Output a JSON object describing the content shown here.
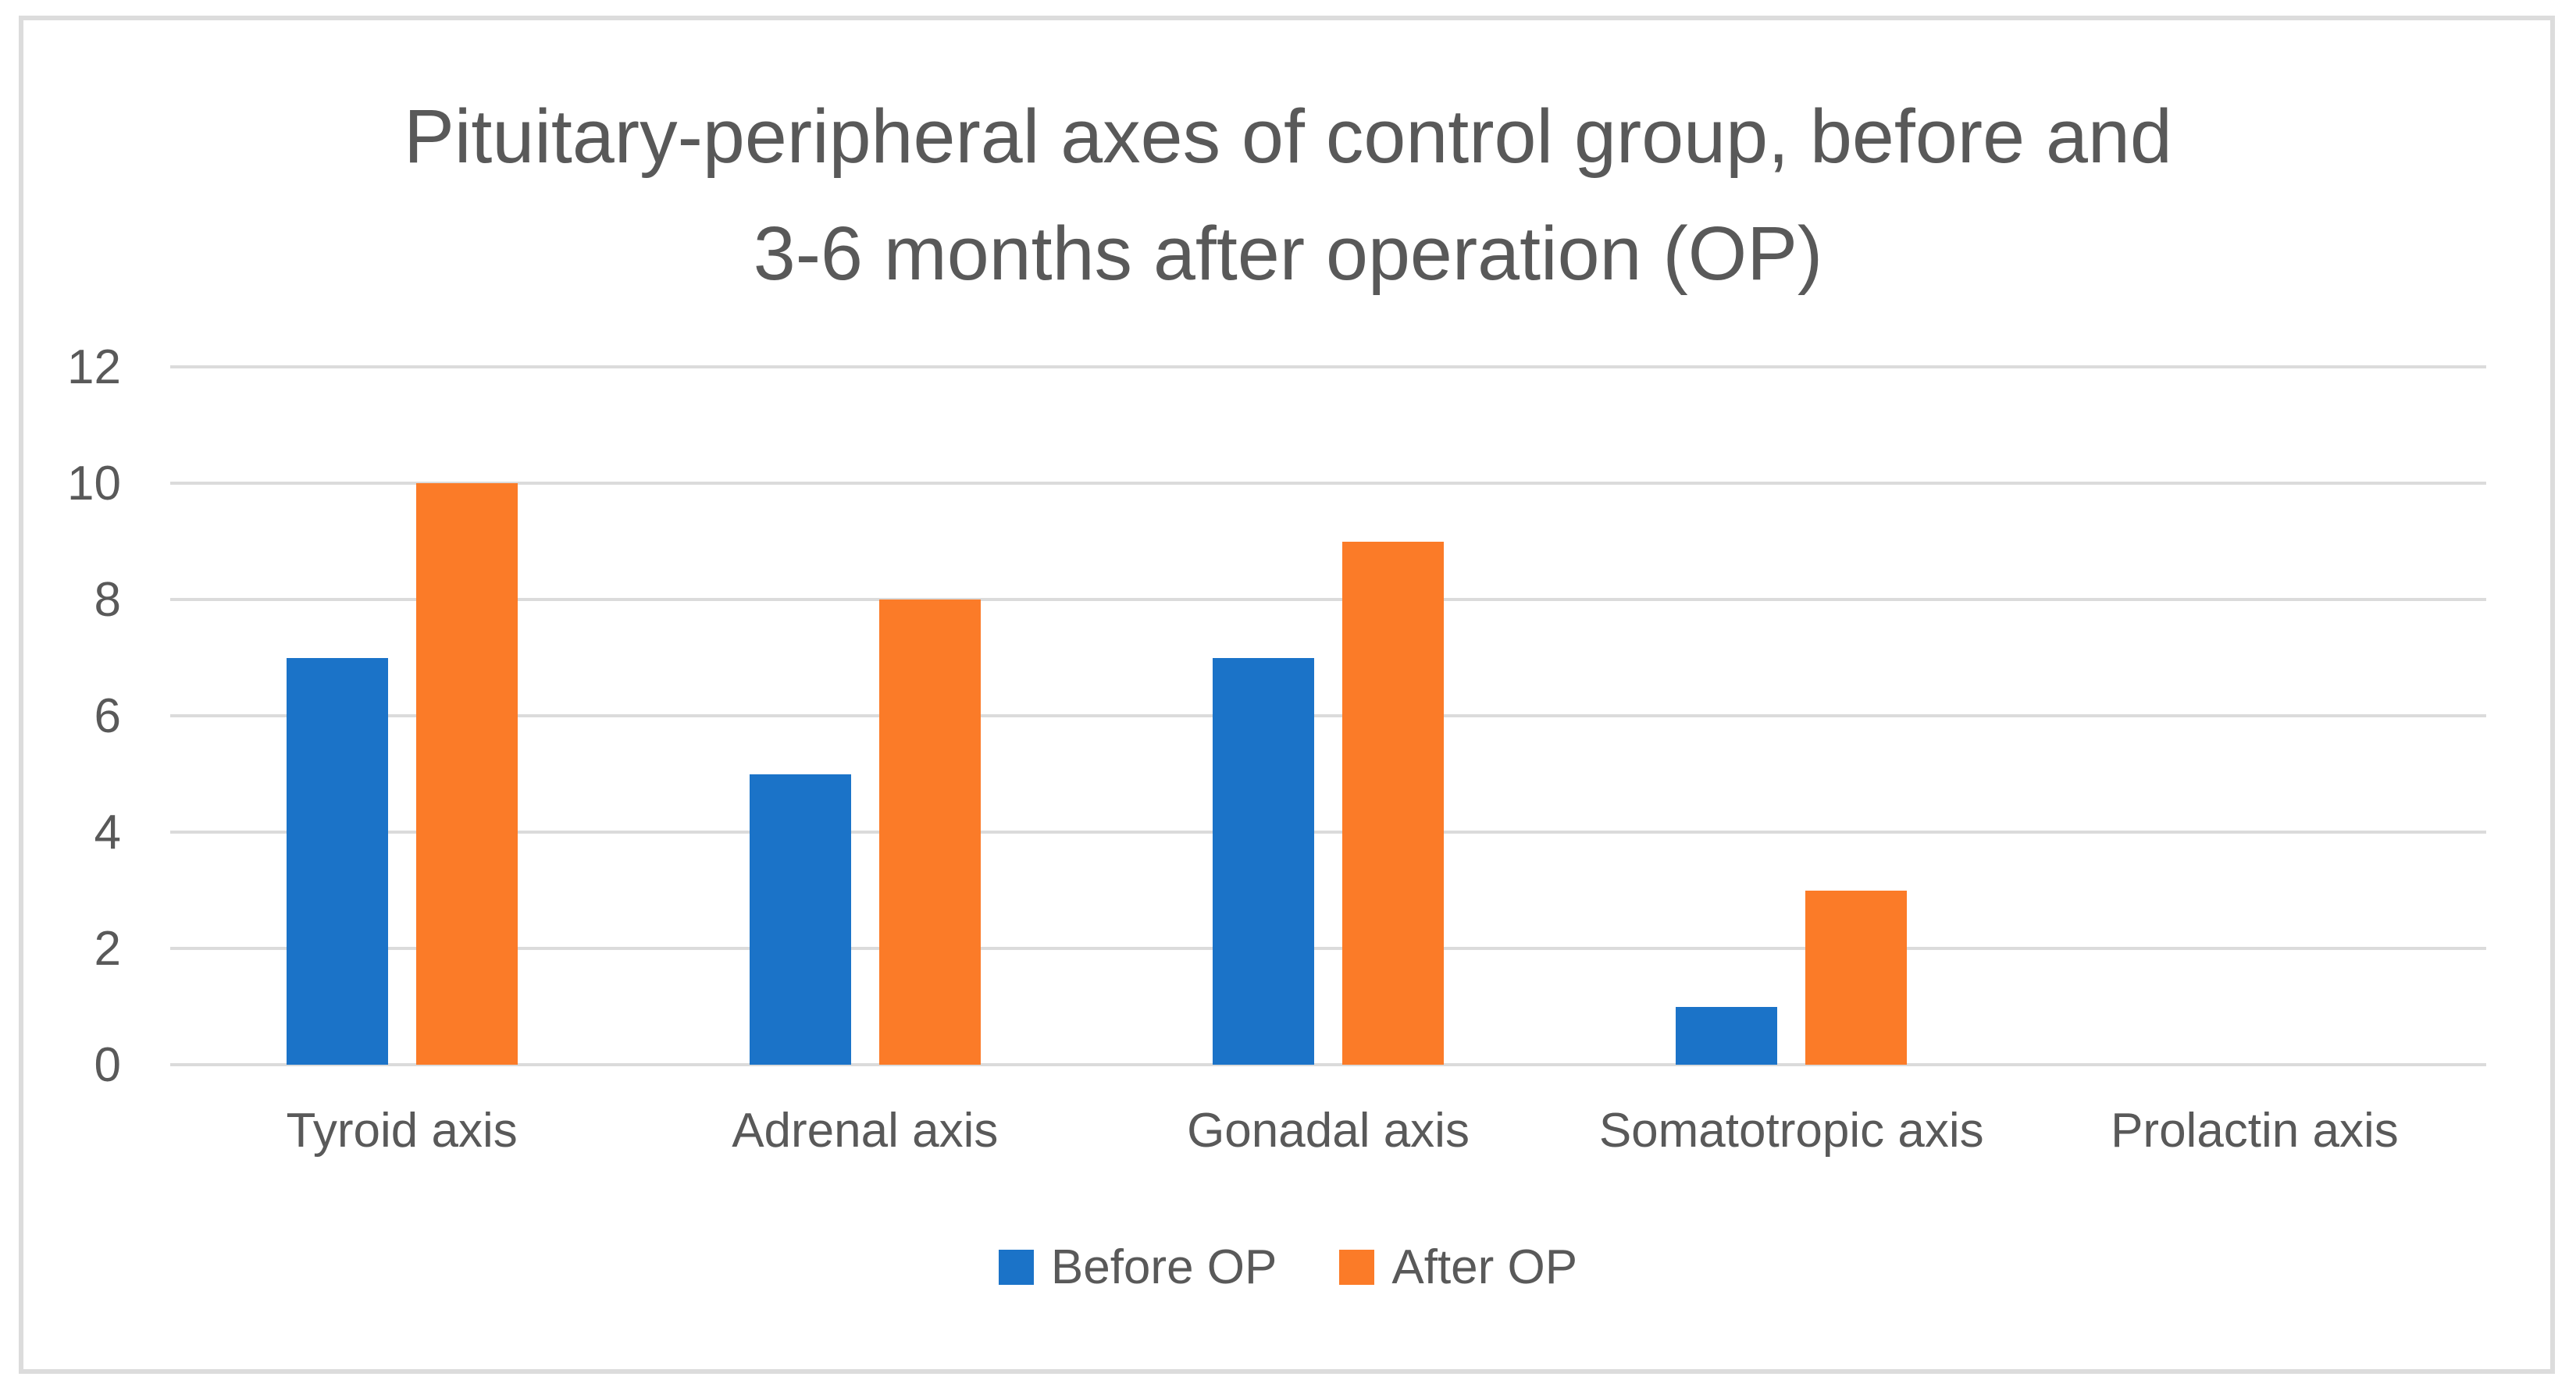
{
  "chart_data": {
    "type": "bar",
    "title": "Pituitary-peripheral axes of control group, before and 3-6 months after operation (OP)",
    "title_lines": [
      "Pituitary-peripheral axes of control group, before and",
      "3-6 months after operation (OP)"
    ],
    "categories": [
      "Tyroid axis",
      "Adrenal axis",
      "Gonadal axis",
      "Somatotropic axis",
      "Prolactin axis"
    ],
    "series": [
      {
        "name": "Before OP",
        "color": "#1B73C8",
        "values": [
          7,
          5,
          7,
          1,
          0
        ]
      },
      {
        "name": "After OP",
        "color": "#FB7B28",
        "values": [
          10,
          8,
          9,
          3,
          0
        ]
      }
    ],
    "ylim": [
      0,
      12
    ],
    "yticks": [
      0,
      2,
      4,
      6,
      8,
      10,
      12
    ],
    "xlabel": "",
    "ylabel": "",
    "grid": "horizontal",
    "legend_position": "bottom",
    "colors": {
      "text": "#595959",
      "gridline": "#DBDBDB",
      "frame_border": "#DCDCDC",
      "background": "#FFFFFF"
    }
  }
}
